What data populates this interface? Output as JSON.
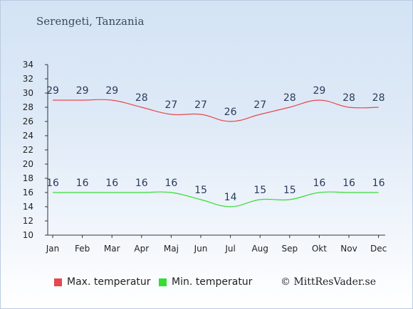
{
  "title": "Serengeti, Tanzania",
  "copyright": "© MittResVader.se",
  "chart_data": {
    "type": "line",
    "categories": [
      "Jan",
      "Feb",
      "Mar",
      "Apr",
      "Maj",
      "Jun",
      "Jul",
      "Aug",
      "Sep",
      "Okt",
      "Nov",
      "Dec"
    ],
    "series": [
      {
        "name": "Max. temperatur",
        "values": [
          29,
          29,
          29,
          28,
          27,
          27,
          26,
          27,
          28,
          29,
          28,
          28
        ],
        "color": "#e8474b"
      },
      {
        "name": "Min. temperatur",
        "values": [
          16,
          16,
          16,
          16,
          16,
          15,
          14,
          15,
          15,
          16,
          16,
          16
        ],
        "color": "#33dd33"
      }
    ],
    "ylim": [
      10,
      34
    ],
    "yticks": [
      10,
      12,
      14,
      16,
      18,
      20,
      22,
      24,
      26,
      28,
      30,
      32,
      34
    ],
    "grid": false,
    "legend": "bottom"
  }
}
